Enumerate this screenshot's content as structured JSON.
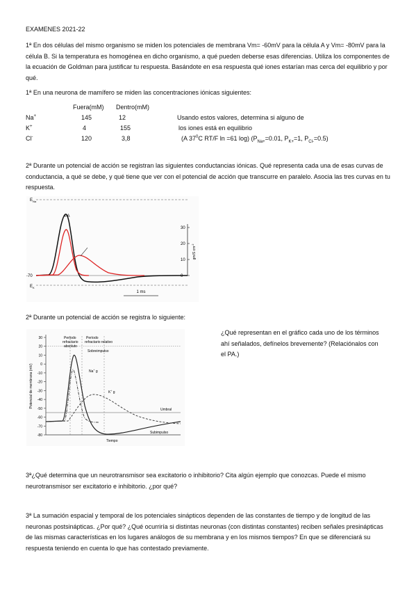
{
  "header": {
    "title": "EXAMENES 2021-22"
  },
  "questions": [
    {
      "text": "1ª En dos células del mismo organismo se miden los potenciales de membrana Vm= -60mV para la célula A y Vm= -80mV para la célula B. Si la temperatura es homogénea en dicho organismo, a qué pueden deberse esas diferencias. Utiliza los componentes de la ecuación de Goldman para justificar tu respuesta. Basándote en esa respuesta qué iones estarían mas cerca del equilibrio y por qué."
    },
    {
      "text": "1ª En una neurona de mamífero se miden las concentraciones iónicas siguientes:",
      "table": {
        "columns": [
          "Fuera(mM)",
          "Dentro(mM)"
        ],
        "rows": [
          {
            "ion": "Na",
            "charge": "+",
            "values": [
              "145",
              "12"
            ]
          },
          {
            "ion": "K",
            "charge": "+",
            "values": [
              "4",
              "155"
            ]
          },
          {
            "ion": "Cl",
            "charge": "-",
            "values": [
              "120",
              "3,8"
            ]
          }
        ]
      },
      "note": {
        "lines": [
          "Usando estos valores, determina si alguno de",
          "los iones está en equilibrio"
        ],
        "formula": [
          "(A 37",
          "0",
          "C RT/F ln  =61 log)  (P",
          "Na+",
          "=0.01, P",
          "K+",
          "=1, P",
          "Cl-",
          "=0.5)"
        ]
      }
    },
    {
      "text": "2ª Durante un potencial de acción se registran las siguientes conductancias iónicas. Qué representa cada una de esas curvas de conductancia, a qué se debe, y qué tiene que ver con el potencial de acción que transcurre en paralelo. Asocia las tres curvas en tu respuesta.",
      "figure": {
        "ena": [
          "E",
          "Na"
        ],
        "ek": [
          "E",
          "K"
        ],
        "pa": "PA",
        "rest": "-70",
        "yticks": [
          "30",
          "20",
          "10",
          "0"
        ],
        "ylabel": [
          "gm/S cm",
          "-2"
        ],
        "scale": "1 ms"
      }
    },
    {
      "text": "2ª Durante un potencial de acción se registra lo siguiente:",
      "prompt": "¿Qué representan en el gráfico cada uno de los términos ahí señalados, defínelos brevemente? (Relaciónalos con el PA.)",
      "figure": {
        "yticks": [
          "30",
          "20",
          "10",
          "0",
          "-10",
          "-20",
          "-30",
          "-40",
          "-50",
          "-60",
          "-70",
          "-80"
        ],
        "ylabel": "Potencial de membrana (mV)",
        "arp": [
          "Período",
          "refractario",
          "absoluto"
        ],
        "rrp": [
          "Período",
          "refractario relativo"
        ],
        "over": "Sobreimpulso",
        "na": [
          "Na",
          "+",
          " g"
        ],
        "k": [
          "K",
          "+",
          " g"
        ],
        "threshold": "Umbral",
        "under": "Subimpulso",
        "xlabel": "Tiempo"
      }
    },
    {
      "text": "3ª¿Qué determina que un neurotransmisor sea excitatorio o inhibitorio? Cita algún ejemplo que conozcas. Puede el mismo neurotransmisor ser excitatorio e inhibitorio. ¿por qué?"
    },
    {
      "text": "3ª La sumación espacial y temporal de los potenciales sinápticos dependen de las constantes de tiempo y de longitud de las neuronas postsinápticas. ¿Por qué? ¿Qué ocurriría si distintas neuronas (con distintas constantes) reciben señales presinápticas de las mismas características en los lugares análogos de su membrana y en los mismos tiempos? En que se diferenciará su respuesta teniendo en cuenta lo que has contestado previamente."
    }
  ]
}
